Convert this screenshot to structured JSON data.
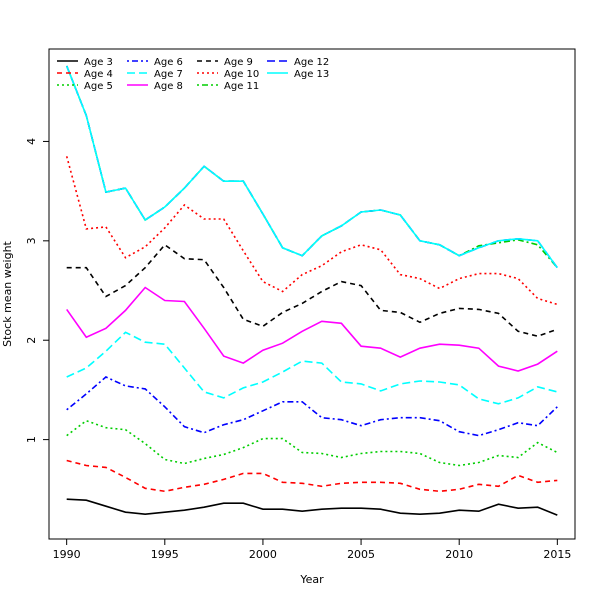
{
  "chart_data": {
    "type": "line",
    "title": "",
    "xlabel": "Year",
    "ylabel": "Stock mean weight",
    "xlim": [
      1989.1,
      2015.9
    ],
    "ylim": [
      0.0,
      4.93
    ],
    "x_ticks": [
      1990,
      1995,
      2000,
      2005,
      2010,
      2015
    ],
    "y_ticks": [
      1,
      2,
      3,
      4
    ],
    "grid": false,
    "legend_position": "top-left",
    "x": [
      1990,
      1991,
      1992,
      1993,
      1994,
      1995,
      1996,
      1997,
      1998,
      1999,
      2000,
      2001,
      2002,
      2003,
      2004,
      2005,
      2006,
      2007,
      2008,
      2009,
      2010,
      2011,
      2012,
      2013,
      2014,
      2015
    ],
    "series": [
      {
        "name": "Age 3",
        "color": "#000000",
        "dash": "solid",
        "values": [
          0.4,
          0.39,
          0.33,
          0.27,
          0.25,
          0.27,
          0.29,
          0.32,
          0.36,
          0.36,
          0.3,
          0.3,
          0.28,
          0.3,
          0.31,
          0.31,
          0.3,
          0.26,
          0.25,
          0.26,
          0.29,
          0.28,
          0.35,
          0.31,
          0.32,
          0.24
        ]
      },
      {
        "name": "Age 4",
        "color": "#ff0000",
        "dash": "dashed",
        "values": [
          0.79,
          0.74,
          0.72,
          0.62,
          0.51,
          0.48,
          0.52,
          0.55,
          0.6,
          0.66,
          0.66,
          0.57,
          0.56,
          0.53,
          0.56,
          0.57,
          0.57,
          0.56,
          0.5,
          0.48,
          0.5,
          0.55,
          0.53,
          0.64,
          0.57,
          0.59
        ]
      },
      {
        "name": "Age 5",
        "color": "#00cd00",
        "dash": "dotted",
        "values": [
          1.04,
          1.19,
          1.12,
          1.1,
          0.96,
          0.8,
          0.76,
          0.81,
          0.85,
          0.92,
          1.01,
          1.01,
          0.87,
          0.86,
          0.82,
          0.86,
          0.88,
          0.88,
          0.86,
          0.77,
          0.74,
          0.77,
          0.84,
          0.82,
          0.97,
          0.87
        ]
      },
      {
        "name": "Age 6",
        "color": "#0000ff",
        "dash": "dotdash",
        "values": [
          1.3,
          1.46,
          1.63,
          1.54,
          1.51,
          1.33,
          1.13,
          1.07,
          1.15,
          1.2,
          1.29,
          1.38,
          1.38,
          1.22,
          1.2,
          1.14,
          1.2,
          1.22,
          1.22,
          1.19,
          1.08,
          1.04,
          1.1,
          1.17,
          1.14,
          1.33
        ]
      },
      {
        "name": "Age 7",
        "color": "#00ffff",
        "dash": "longdash",
        "values": [
          1.63,
          1.72,
          1.89,
          2.08,
          1.98,
          1.96,
          1.72,
          1.48,
          1.42,
          1.52,
          1.58,
          1.68,
          1.79,
          1.77,
          1.58,
          1.56,
          1.49,
          1.56,
          1.59,
          1.58,
          1.55,
          1.41,
          1.36,
          1.42,
          1.53,
          1.48
        ]
      },
      {
        "name": "Age 8",
        "color": "#ff00ff",
        "dash": "solid",
        "values": [
          2.31,
          2.03,
          2.12,
          2.3,
          2.53,
          2.4,
          2.39,
          2.12,
          1.84,
          1.77,
          1.9,
          1.97,
          2.09,
          2.19,
          2.17,
          1.94,
          1.92,
          1.83,
          1.92,
          1.96,
          1.95,
          1.92,
          1.74,
          1.69,
          1.76,
          1.89
        ]
      },
      {
        "name": "Age 9",
        "color": "#000000",
        "dash": "dashed",
        "values": [
          2.73,
          2.73,
          2.44,
          2.55,
          2.73,
          2.96,
          2.82,
          2.81,
          2.53,
          2.21,
          2.14,
          2.28,
          2.37,
          2.49,
          2.59,
          2.55,
          2.3,
          2.28,
          2.18,
          2.27,
          2.32,
          2.31,
          2.27,
          2.09,
          2.04,
          2.11
        ]
      },
      {
        "name": "Age 10",
        "color": "#ff0000",
        "dash": "dotted",
        "values": [
          3.85,
          3.12,
          3.14,
          2.83,
          2.94,
          3.13,
          3.36,
          3.22,
          3.22,
          2.9,
          2.59,
          2.49,
          2.66,
          2.75,
          2.89,
          2.96,
          2.91,
          2.66,
          2.62,
          2.52,
          2.62,
          2.67,
          2.67,
          2.62,
          2.42,
          2.36
        ]
      },
      {
        "name": "Age 11",
        "color": "#00cd00",
        "dash": "dotdash",
        "values": [
          4.76,
          4.26,
          3.49,
          3.53,
          3.21,
          3.34,
          3.53,
          3.75,
          3.6,
          3.6,
          3.27,
          2.93,
          2.85,
          3.05,
          3.15,
          3.29,
          3.31,
          3.26,
          3.0,
          2.96,
          2.85,
          2.95,
          2.98,
          3.01,
          2.96,
          2.73
        ]
      },
      {
        "name": "Age 12",
        "color": "#0000ff",
        "dash": "longdash",
        "values": [
          4.76,
          4.26,
          3.49,
          3.53,
          3.21,
          3.34,
          3.53,
          3.75,
          3.6,
          3.6,
          3.27,
          2.93,
          2.85,
          3.05,
          3.15,
          3.29,
          3.31,
          3.26,
          3.0,
          2.96,
          2.85,
          2.93,
          3.0,
          3.02,
          3.0,
          2.73
        ]
      },
      {
        "name": "Age 13",
        "color": "#00ffff",
        "dash": "solid",
        "values": [
          4.76,
          4.26,
          3.49,
          3.53,
          3.21,
          3.34,
          3.53,
          3.75,
          3.6,
          3.6,
          3.27,
          2.93,
          2.85,
          3.05,
          3.15,
          3.29,
          3.31,
          3.26,
          3.0,
          2.96,
          2.85,
          2.93,
          3.0,
          3.02,
          3.0,
          2.73
        ]
      }
    ]
  }
}
